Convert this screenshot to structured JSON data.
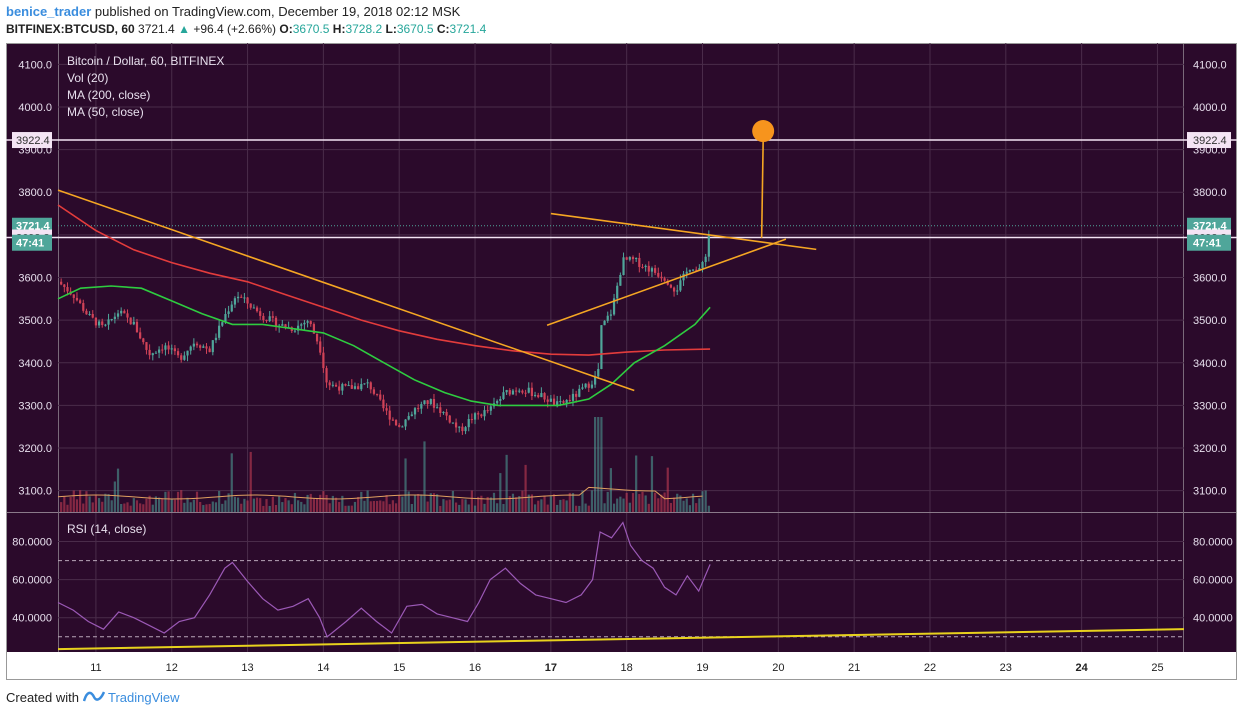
{
  "header": {
    "user": "benice_trader",
    "published": "published on TradingView.com, December 19, 2018 02:12 MSK",
    "symbol": "BITFINEX:BTCUSD, 60",
    "last": "3721.4",
    "change": "+96.4 (+2.66%)",
    "o_label": "O:",
    "o_value": "3670.5",
    "h_label": "H:",
    "h_value": "3728.2",
    "l_label": "L:",
    "l_value": "3670.5",
    "c_label": "C:",
    "c_value": "3721.4"
  },
  "legend": {
    "title": "Bitcoin / Dollar, 60, BITFINEX",
    "vol": "Vol (20)",
    "ma200": "MA (200, close)",
    "ma50": "MA (50, close)",
    "rsi": "RSI (14, close)"
  },
  "footer": {
    "created": "Created with",
    "brand": "TradingView"
  },
  "colors": {
    "background": "#2b0a2b",
    "grid": "#4a2c4a",
    "up": "#4fa69a",
    "down": "#d04257",
    "ma200": "#e33c3c",
    "ma50": "#2ecc40",
    "trendline": "#f5a623",
    "rsi": "#9b59b6",
    "yellow": "#e8d21d",
    "marker": "#f7941d"
  },
  "chart_data": [
    {
      "type": "candlestick",
      "title": "Bitcoin / Dollar, 60, BITFINEX",
      "ylim": [
        3050,
        4150
      ],
      "y_ticks": [
        3100.0,
        3200.0,
        3300.0,
        3400.0,
        3500.0,
        3600.0,
        3700.0,
        3800.0,
        3900.0,
        4000.0,
        4100.0
      ],
      "x_ticks": [
        "11",
        "12",
        "13",
        "14",
        "15",
        "16",
        "17",
        "18",
        "19",
        "20",
        "21",
        "22",
        "23",
        "24",
        "25"
      ],
      "x_tick_days": [
        11,
        12,
        13,
        14,
        15,
        16,
        17,
        18,
        19,
        20,
        21,
        22,
        23,
        24,
        25
      ],
      "xlim_days": [
        10.5,
        25.35
      ],
      "price_labels": [
        {
          "value": 3922.4,
          "text": "3922.4",
          "kind": "level"
        },
        {
          "value": 3721.4,
          "text": "3721.4",
          "kind": "last"
        },
        {
          "value": 3693.8,
          "text": "3693.8",
          "kind": "level"
        },
        {
          "value": 3700.0,
          "text": "47:41",
          "kind": "countdown"
        }
      ],
      "horizontal_lines": [
        3922.4,
        3693.8
      ],
      "close_path": [
        [
          10.5,
          3590
        ],
        [
          10.7,
          3560
        ],
        [
          10.9,
          3510
        ],
        [
          11.1,
          3480
        ],
        [
          11.3,
          3520
        ],
        [
          11.5,
          3490
        ],
        [
          11.7,
          3420
        ],
        [
          11.9,
          3440
        ],
        [
          12.1,
          3410
        ],
        [
          12.3,
          3450
        ],
        [
          12.5,
          3430
        ],
        [
          12.7,
          3510
        ],
        [
          12.85,
          3560
        ],
        [
          13.0,
          3540
        ],
        [
          13.2,
          3510
        ],
        [
          13.4,
          3490
        ],
        [
          13.6,
          3480
        ],
        [
          13.8,
          3500
        ],
        [
          13.95,
          3440
        ],
        [
          14.05,
          3350
        ],
        [
          14.3,
          3340
        ],
        [
          14.6,
          3350
        ],
        [
          14.8,
          3290
        ],
        [
          15.0,
          3250
        ],
        [
          15.2,
          3290
        ],
        [
          15.4,
          3310
        ],
        [
          15.6,
          3280
        ],
        [
          15.8,
          3240
        ],
        [
          15.95,
          3270
        ],
        [
          16.2,
          3290
        ],
        [
          16.4,
          3330
        ],
        [
          16.6,
          3340
        ],
        [
          16.9,
          3320
        ],
        [
          17.1,
          3300
        ],
        [
          17.3,
          3320
        ],
        [
          17.5,
          3350
        ],
        [
          17.62,
          3370
        ],
        [
          17.66,
          3480
        ],
        [
          17.8,
          3520
        ],
        [
          17.95,
          3640
        ],
        [
          18.1,
          3640
        ],
        [
          18.3,
          3620
        ],
        [
          18.5,
          3600
        ],
        [
          18.65,
          3570
        ],
        [
          18.85,
          3630
        ],
        [
          18.95,
          3610
        ],
        [
          19.05,
          3660
        ],
        [
          19.1,
          3721.4
        ]
      ],
      "ma200": [
        [
          10.5,
          3770
        ],
        [
          11.0,
          3710
        ],
        [
          11.5,
          3665
        ],
        [
          12.0,
          3635
        ],
        [
          12.5,
          3610
        ],
        [
          13.0,
          3590
        ],
        [
          13.5,
          3560
        ],
        [
          14.0,
          3530
        ],
        [
          14.5,
          3500
        ],
        [
          15.0,
          3475
        ],
        [
          15.5,
          3455
        ],
        [
          16.0,
          3440
        ],
        [
          16.5,
          3428
        ],
        [
          17.0,
          3420
        ],
        [
          17.5,
          3418
        ],
        [
          18.0,
          3425
        ],
        [
          18.5,
          3430
        ],
        [
          19.1,
          3432
        ]
      ],
      "ma50": [
        [
          10.5,
          3550
        ],
        [
          10.8,
          3575
        ],
        [
          11.2,
          3580
        ],
        [
          11.6,
          3575
        ],
        [
          12.0,
          3545
        ],
        [
          12.4,
          3515
        ],
        [
          12.8,
          3490
        ],
        [
          13.2,
          3490
        ],
        [
          13.6,
          3480
        ],
        [
          14.0,
          3470
        ],
        [
          14.4,
          3440
        ],
        [
          14.8,
          3400
        ],
        [
          15.2,
          3360
        ],
        [
          15.6,
          3330
        ],
        [
          15.95,
          3310
        ],
        [
          16.3,
          3300
        ],
        [
          16.7,
          3300
        ],
        [
          17.1,
          3300
        ],
        [
          17.5,
          3315
        ],
        [
          17.8,
          3350
        ],
        [
          18.1,
          3400
        ],
        [
          18.5,
          3440
        ],
        [
          18.9,
          3490
        ],
        [
          19.1,
          3530
        ]
      ],
      "trendlines": [
        {
          "name": "descending-resistance",
          "points": [
            [
              10.5,
              3805
            ],
            [
              18.1,
              3335
            ]
          ]
        },
        {
          "name": "triangle-top",
          "points": [
            [
              17.0,
              3750
            ],
            [
              20.5,
              3666
            ]
          ]
        },
        {
          "name": "triangle-bottom",
          "points": [
            [
              16.95,
              3488
            ],
            [
              20.1,
              3690
            ]
          ]
        },
        {
          "name": "target-projection",
          "points": [
            [
              19.78,
              3693
            ],
            [
              19.8,
              3922.4
            ]
          ]
        }
      ],
      "target_marker": {
        "day": 19.8,
        "value": 3922.4
      }
    },
    {
      "type": "line",
      "title": "RSI (14, close)",
      "ylim": [
        22,
        95
      ],
      "y_ticks": [
        40.0,
        60.0,
        80.0
      ],
      "y_tick_labels": [
        "40.0000",
        "60.0000",
        "80.0000"
      ],
      "bands": [
        70,
        30
      ],
      "rsi": [
        [
          10.5,
          48
        ],
        [
          10.7,
          44
        ],
        [
          10.9,
          38
        ],
        [
          11.1,
          34
        ],
        [
          11.3,
          43
        ],
        [
          11.5,
          40
        ],
        [
          11.7,
          36
        ],
        [
          11.9,
          32
        ],
        [
          12.1,
          38
        ],
        [
          12.3,
          40
        ],
        [
          12.5,
          52
        ],
        [
          12.7,
          66
        ],
        [
          12.8,
          69
        ],
        [
          13.0,
          59
        ],
        [
          13.2,
          50
        ],
        [
          13.4,
          44
        ],
        [
          13.6,
          46
        ],
        [
          13.8,
          50
        ],
        [
          13.95,
          40
        ],
        [
          14.05,
          30
        ],
        [
          14.3,
          38
        ],
        [
          14.5,
          45
        ],
        [
          14.7,
          38
        ],
        [
          14.9,
          32
        ],
        [
          15.1,
          46
        ],
        [
          15.3,
          47
        ],
        [
          15.5,
          42
        ],
        [
          15.7,
          40
        ],
        [
          15.9,
          38
        ],
        [
          16.05,
          48
        ],
        [
          16.2,
          60
        ],
        [
          16.4,
          66
        ],
        [
          16.6,
          58
        ],
        [
          16.8,
          52
        ],
        [
          17.0,
          50
        ],
        [
          17.2,
          48
        ],
        [
          17.4,
          52
        ],
        [
          17.55,
          60
        ],
        [
          17.65,
          85
        ],
        [
          17.8,
          82
        ],
        [
          17.95,
          90
        ],
        [
          18.05,
          78
        ],
        [
          18.2,
          70
        ],
        [
          18.35,
          66
        ],
        [
          18.5,
          56
        ],
        [
          18.65,
          52
        ],
        [
          18.8,
          62
        ],
        [
          18.95,
          54
        ],
        [
          19.1,
          68
        ]
      ],
      "yellow_line": [
        [
          10.5,
          23.5
        ],
        [
          25.35,
          34
        ]
      ]
    }
  ],
  "volume": {
    "ylim": [
      0,
      2500
    ],
    "note": "volume bars in main pane bottom"
  }
}
